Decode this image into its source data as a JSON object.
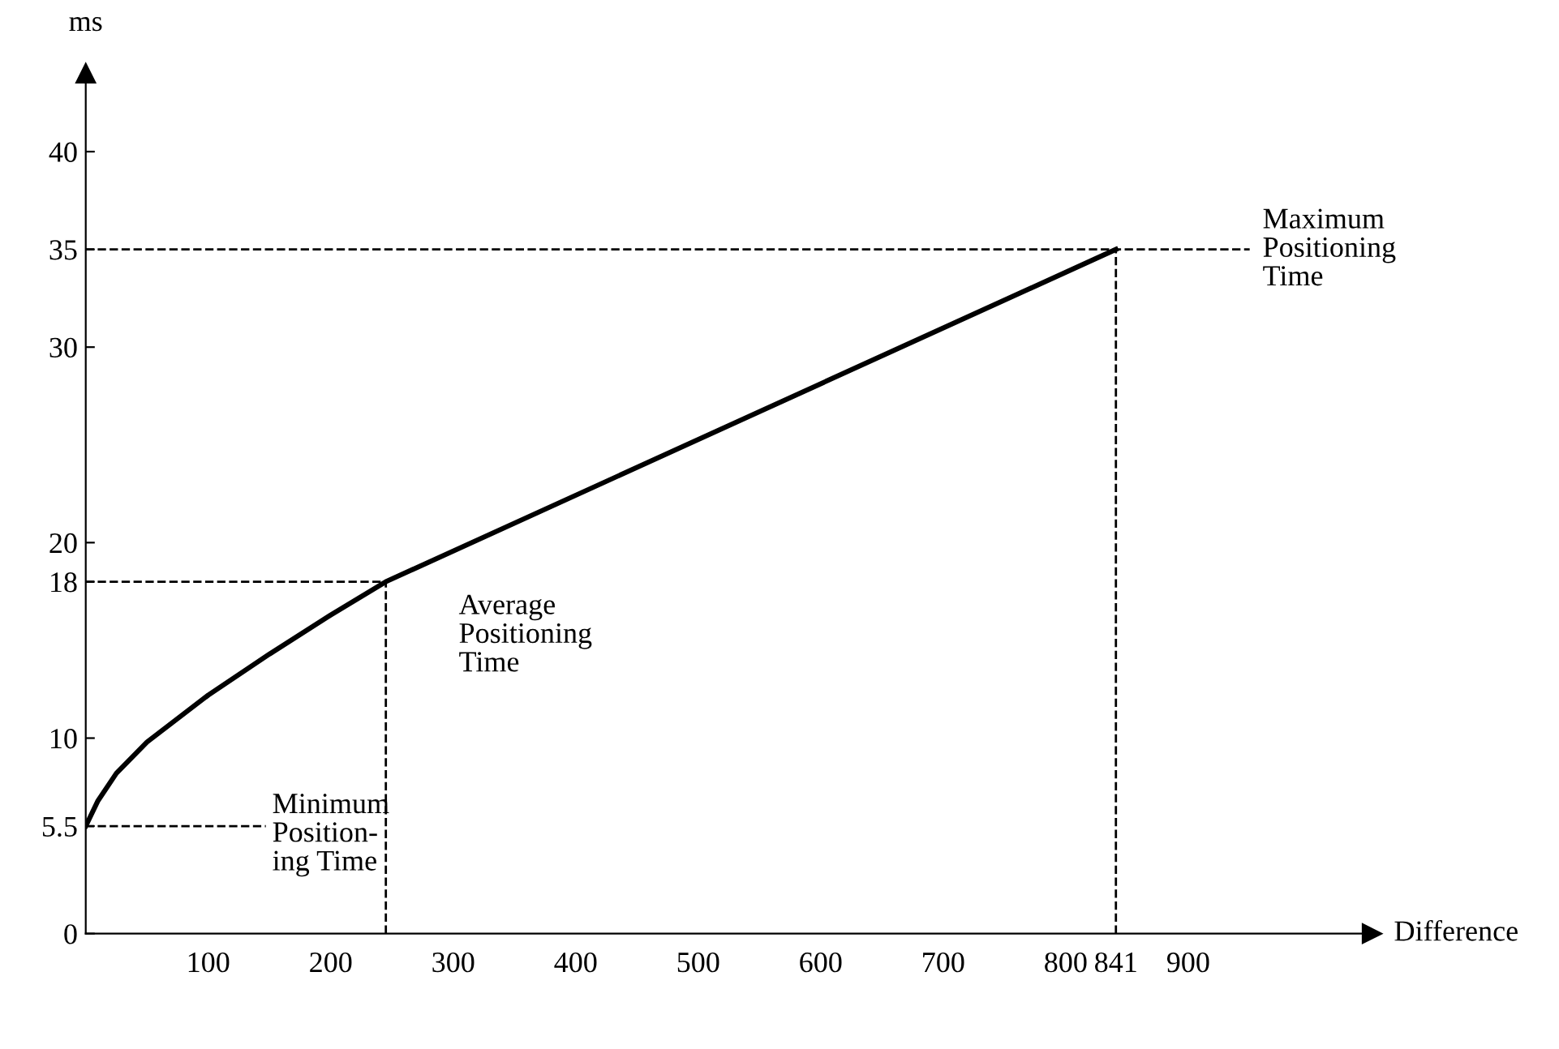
{
  "chart_data": {
    "type": "line",
    "xlabel": "Difference",
    "ylabel": "ms",
    "series": [
      {
        "color": "#000000",
        "x": [
          0,
          10,
          25,
          50,
          75,
          100,
          150,
          200,
          245,
          841
        ],
        "values": [
          5.5,
          6.8,
          8.2,
          9.8,
          11.0,
          12.2,
          14.3,
          16.3,
          18,
          35
        ]
      }
    ],
    "xlim": [
      0,
      1050
    ],
    "ylim": [
      0,
      44
    ],
    "xticks": [
      100,
      200,
      300,
      400,
      500,
      600,
      700,
      800,
      841,
      900
    ],
    "yticks": [
      0,
      5.5,
      10,
      18,
      20,
      30,
      35,
      40
    ],
    "ref_lines": [
      {
        "axis": "y",
        "value": 5.5,
        "line_style": "dashed",
        "color": "#000000"
      },
      {
        "axis": "y",
        "value": 18,
        "line_style": "dashed",
        "color": "#000000"
      },
      {
        "axis": "x",
        "value": 245,
        "line_style": "dashed",
        "color": "#000000"
      },
      {
        "axis": "y",
        "value": 35,
        "line_style": "dashed",
        "color": "#000000"
      },
      {
        "axis": "x",
        "value": 841,
        "line_style": "dashed",
        "color": "#000000"
      }
    ],
    "annotations": [
      "Minimum\nPosition-\ning Time",
      "Average\nPositioning\nTime",
      "Maximum\nPositioning\nTime"
    ],
    "grid": false,
    "legend": false,
    "marker": "none",
    "line_style": "solid"
  }
}
